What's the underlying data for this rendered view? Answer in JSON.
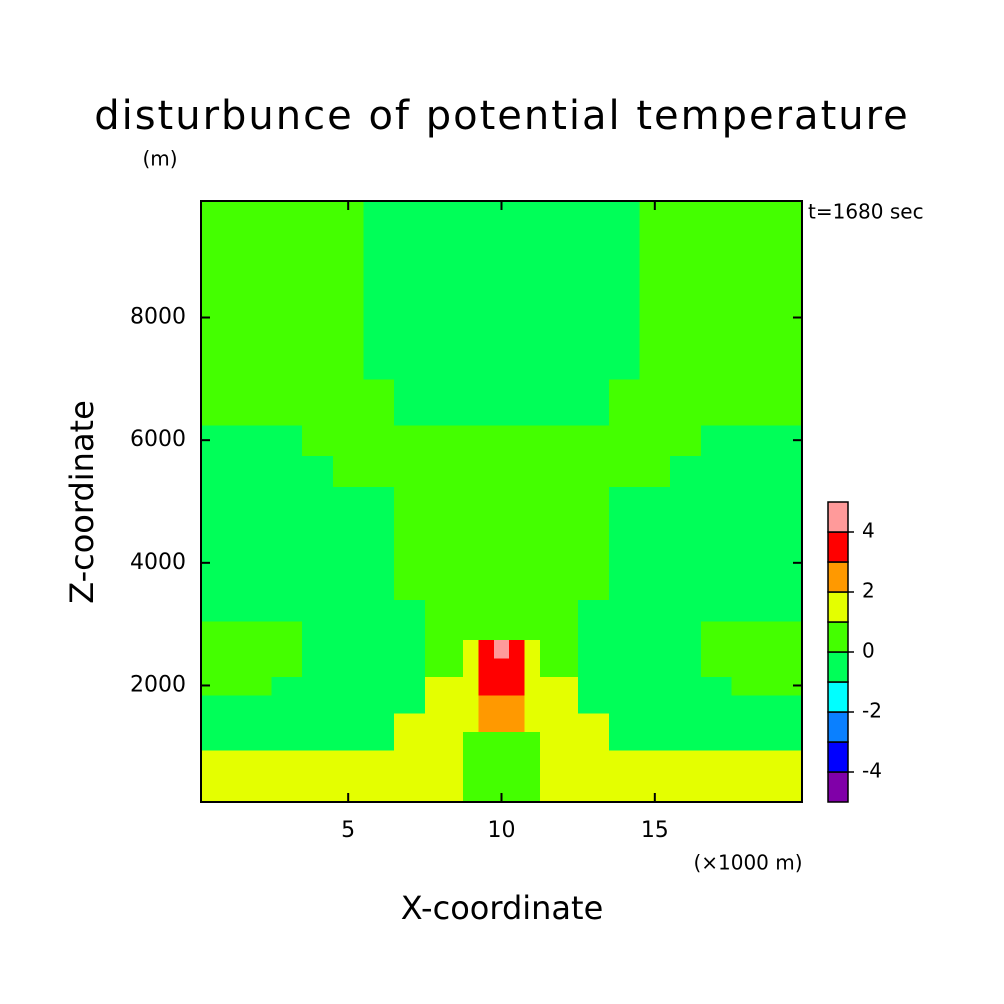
{
  "chart_data": {
    "type": "contour",
    "title": "disturbunce of potential temperature",
    "y_unit_label": "(m)",
    "annotation": "t=1680 sec",
    "x_unit_label": "(×1000 m)",
    "xlabel": "X-coordinate",
    "ylabel": "Z-coordinate",
    "xlim": [
      0.2,
      19.8
    ],
    "ylim": [
      100,
      9900
    ],
    "xticks": [
      5,
      10,
      15
    ],
    "yticks": [
      2000,
      4000,
      6000,
      8000
    ],
    "x": [
      1,
      2,
      3,
      4,
      5,
      6,
      7,
      8,
      8.5,
      9,
      9.5,
      10,
      10.5,
      11,
      11.5,
      12,
      13,
      14,
      15,
      16,
      17,
      18,
      19
    ],
    "y": [
      200,
      500,
      800,
      1100,
      1400,
      1700,
      2000,
      2300,
      2600,
      2900,
      3200,
      3600,
      4000,
      4500,
      5000,
      5500,
      6000,
      6500,
      7500,
      8500,
      9500
    ],
    "z": [
      [
        1.4,
        1.4,
        1.4,
        1.4,
        1.4,
        1.4,
        1.4,
        1.4,
        1.4,
        0.4,
        0.4,
        0.4,
        0.4,
        0.4,
        1.4,
        1.4,
        1.4,
        1.4,
        1.4,
        1.4,
        1.4,
        1.4,
        1.4
      ],
      [
        1.4,
        1.4,
        1.4,
        1.4,
        1.4,
        1.4,
        1.4,
        1.4,
        1.4,
        0.4,
        0.4,
        0.4,
        0.4,
        0.4,
        1.4,
        1.4,
        1.4,
        1.4,
        1.4,
        1.4,
        1.4,
        1.4,
        1.4
      ],
      [
        1.4,
        1.4,
        1.4,
        1.4,
        1.4,
        1.4,
        1.4,
        1.4,
        1.4,
        0.4,
        0.4,
        0.4,
        0.4,
        0.4,
        1.4,
        1.4,
        1.4,
        1.4,
        1.4,
        1.4,
        1.4,
        1.4,
        1.4
      ],
      [
        -0.4,
        -0.4,
        -0.4,
        -0.4,
        -0.4,
        -0.4,
        1.4,
        1.4,
        1.4,
        0.4,
        0.4,
        0.4,
        0.4,
        0.4,
        1.4,
        1.4,
        1.4,
        -0.4,
        -0.4,
        -0.4,
        -0.4,
        -0.4,
        -0.4
      ],
      [
        -0.4,
        -0.4,
        -0.4,
        -0.4,
        -0.4,
        -0.4,
        1.4,
        1.4,
        1.4,
        1.4,
        2.5,
        2.5,
        2.5,
        1.4,
        1.4,
        1.4,
        1.4,
        -0.4,
        -0.4,
        -0.4,
        -0.4,
        -0.4,
        -0.4
      ],
      [
        -0.4,
        -0.4,
        -0.4,
        -0.4,
        -0.4,
        -0.4,
        -0.4,
        1.4,
        1.4,
        1.4,
        2.5,
        2.5,
        2.5,
        1.4,
        1.4,
        1.4,
        -0.4,
        -0.4,
        -0.4,
        -0.4,
        -0.4,
        -0.4,
        -0.4
      ],
      [
        0.4,
        0.4,
        -0.4,
        -0.4,
        -0.4,
        -0.4,
        -0.4,
        1.4,
        1.4,
        1.4,
        3.5,
        3.5,
        3.5,
        1.4,
        1.4,
        1.4,
        -0.4,
        -0.4,
        -0.4,
        -0.4,
        -0.4,
        0.4,
        0.4
      ],
      [
        0.4,
        0.4,
        0.4,
        -0.4,
        -0.4,
        -0.4,
        -0.4,
        0.4,
        0.4,
        1.4,
        3.5,
        3.5,
        3.5,
        1.4,
        0.4,
        0.4,
        -0.4,
        -0.4,
        -0.4,
        -0.4,
        0.4,
        0.4,
        0.4
      ],
      [
        0.4,
        0.4,
        0.4,
        -0.4,
        -0.4,
        -0.4,
        -0.4,
        0.4,
        0.4,
        1.4,
        3.5,
        4.4,
        3.5,
        1.4,
        0.4,
        0.4,
        -0.4,
        -0.4,
        -0.4,
        -0.4,
        0.4,
        0.4,
        0.4
      ],
      [
        0.4,
        0.4,
        0.4,
        -0.4,
        -0.4,
        -0.4,
        -0.4,
        0.4,
        0.4,
        0.4,
        0.4,
        0.4,
        0.4,
        0.4,
        0.4,
        0.4,
        -0.4,
        -0.4,
        -0.4,
        -0.4,
        0.4,
        0.4,
        0.4
      ],
      [
        -0.4,
        -0.4,
        -0.4,
        -0.4,
        -0.4,
        -0.4,
        -0.4,
        0.4,
        0.4,
        0.4,
        0.4,
        0.4,
        0.4,
        0.4,
        0.4,
        0.4,
        -0.4,
        -0.4,
        -0.4,
        -0.4,
        -0.4,
        -0.4,
        -0.4
      ],
      [
        -0.4,
        -0.4,
        -0.4,
        -0.4,
        -0.4,
        -0.4,
        0.4,
        0.4,
        0.4,
        0.4,
        0.4,
        0.4,
        0.4,
        0.4,
        0.4,
        0.4,
        0.4,
        -0.4,
        -0.4,
        -0.4,
        -0.4,
        -0.4,
        -0.4
      ],
      [
        -0.4,
        -0.4,
        -0.4,
        -0.4,
        -0.4,
        -0.4,
        0.4,
        0.4,
        0.4,
        0.4,
        0.4,
        0.4,
        0.4,
        0.4,
        0.4,
        0.4,
        0.4,
        -0.4,
        -0.4,
        -0.4,
        -0.4,
        -0.4,
        -0.4
      ],
      [
        -0.4,
        -0.4,
        -0.4,
        -0.4,
        -0.4,
        -0.4,
        0.4,
        0.4,
        0.4,
        0.4,
        0.4,
        0.4,
        0.4,
        0.4,
        0.4,
        0.4,
        0.4,
        -0.4,
        -0.4,
        -0.4,
        -0.4,
        -0.4,
        -0.4
      ],
      [
        -0.4,
        -0.4,
        -0.4,
        -0.4,
        -0.4,
        -0.4,
        0.4,
        0.4,
        0.4,
        0.4,
        0.4,
        0.4,
        0.4,
        0.4,
        0.4,
        0.4,
        0.4,
        -0.4,
        -0.4,
        -0.4,
        -0.4,
        -0.4,
        -0.4
      ],
      [
        -0.4,
        -0.4,
        -0.4,
        -0.4,
        0.4,
        0.4,
        0.4,
        0.4,
        0.4,
        0.4,
        0.4,
        0.4,
        0.4,
        0.4,
        0.4,
        0.4,
        0.4,
        0.4,
        0.4,
        -0.4,
        -0.4,
        -0.4,
        -0.4
      ],
      [
        -0.4,
        -0.4,
        -0.4,
        0.4,
        0.4,
        0.4,
        0.4,
        0.4,
        0.4,
        0.4,
        0.4,
        0.4,
        0.4,
        0.4,
        0.4,
        0.4,
        0.4,
        0.4,
        0.4,
        0.4,
        -0.4,
        -0.4,
        -0.4
      ],
      [
        0.4,
        0.4,
        0.4,
        0.4,
        0.4,
        0.4,
        -0.4,
        -0.4,
        -0.4,
        -0.4,
        -0.4,
        -0.4,
        -0.4,
        -0.4,
        -0.4,
        -0.4,
        -0.4,
        0.4,
        0.4,
        0.4,
        0.4,
        0.4,
        0.4
      ],
      [
        0.4,
        0.4,
        0.4,
        0.4,
        0.4,
        -0.4,
        -0.4,
        -0.4,
        -0.4,
        -0.4,
        -0.4,
        -0.4,
        -0.4,
        -0.4,
        -0.4,
        -0.4,
        -0.4,
        -0.4,
        0.4,
        0.4,
        0.4,
        0.4,
        0.4
      ],
      [
        0.4,
        0.4,
        0.4,
        0.4,
        0.4,
        -0.4,
        -0.4,
        -0.4,
        -0.4,
        -0.4,
        -0.4,
        -0.4,
        -0.4,
        -0.4,
        -0.4,
        -0.4,
        -0.4,
        -0.4,
        0.4,
        0.4,
        0.4,
        0.4,
        0.4
      ],
      [
        0.4,
        0.4,
        0.4,
        0.4,
        0.4,
        -0.4,
        -0.4,
        -0.4,
        -0.4,
        -0.4,
        -0.4,
        -0.4,
        -0.4,
        -0.4,
        -0.4,
        -0.4,
        -0.4,
        -0.4,
        0.4,
        0.4,
        0.4,
        0.4,
        0.4
      ]
    ],
    "levels": [
      -5,
      -4,
      -3,
      -2,
      -1,
      0,
      1,
      2,
      3,
      4,
      5
    ],
    "colors": [
      "#8000a8",
      "#0000ff",
      "#0a80ff",
      "#00ffff",
      "#00ff58",
      "#44ff00",
      "#e4ff00",
      "#ff9900",
      "#ff0000",
      "#ff9a9a"
    ],
    "colorbar_ticks": [
      -4,
      -2,
      0,
      2,
      4
    ]
  }
}
